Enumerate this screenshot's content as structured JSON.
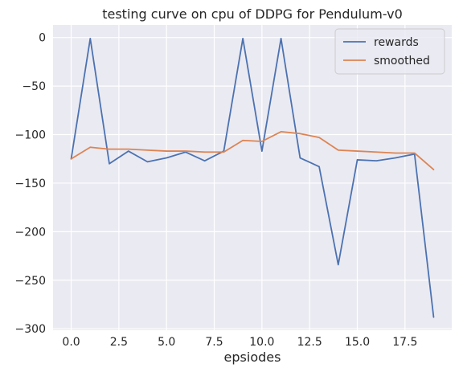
{
  "chart_data": {
    "type": "line",
    "title": "testing curve on cpu of DDPG for Pendulum-v0",
    "xlabel": "epsiodes",
    "ylabel": "",
    "xlim": [
      -0.95,
      19.95
    ],
    "ylim": [
      -301.5,
      13
    ],
    "x_ticks": [
      0.0,
      2.5,
      5.0,
      7.5,
      10.0,
      12.5,
      15.0,
      17.5
    ],
    "x_tick_labels": [
      "0.0",
      "2.5",
      "5.0",
      "7.5",
      "10.0",
      "12.5",
      "15.0",
      "17.5"
    ],
    "y_ticks": [
      0,
      -50,
      -100,
      -150,
      -200,
      -250,
      -300
    ],
    "y_tick_labels": [
      "0",
      "−50",
      "−100",
      "−150",
      "−200",
      "−250",
      "−300"
    ],
    "grid": true,
    "legend_position": "top-right",
    "x": [
      0,
      1,
      2,
      3,
      4,
      5,
      6,
      7,
      8,
      9,
      10,
      11,
      12,
      13,
      14,
      15,
      16,
      17,
      18,
      19
    ],
    "series": [
      {
        "name": "rewards",
        "color": "#4c72b0",
        "values": [
          -125,
          -1,
          -130,
          -117,
          -128,
          -124,
          -118,
          -127,
          -117,
          -1,
          -117,
          -1,
          -124,
          -133,
          -234,
          -126,
          -127,
          -124,
          -120,
          -288
        ]
      },
      {
        "name": "smoothed",
        "color": "#dd8452",
        "values": [
          -125,
          -113,
          -115,
          -115,
          -116,
          -117,
          -117,
          -118,
          -118,
          -106,
          -107,
          -97,
          -99,
          -103,
          -116,
          -117,
          -118,
          -119,
          -119,
          -136
        ]
      }
    ]
  },
  "style": {
    "background": "#eaeaf2",
    "grid_color": "#ffffff"
  }
}
